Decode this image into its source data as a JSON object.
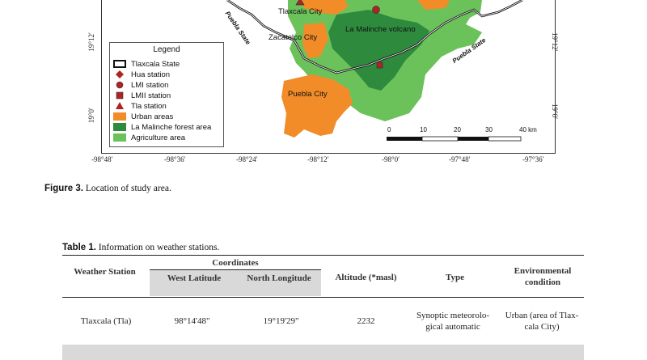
{
  "map": {
    "legend": {
      "title": "Legend",
      "items": [
        {
          "label": "Tlaxcala State",
          "symbol": "state-boundary-icon"
        },
        {
          "label": "Hua station",
          "symbol": "diamond-icon",
          "color": "#b22222"
        },
        {
          "label": "LMI station",
          "symbol": "circle-icon",
          "color": "#b22222"
        },
        {
          "label": "LMII station",
          "symbol": "square-icon",
          "color": "#b22222"
        },
        {
          "label": "Tla station",
          "symbol": "triangle-icon",
          "color": "#b22222"
        },
        {
          "label": "Urban areas",
          "symbol": "swatch-icon",
          "color": "#f28c28"
        },
        {
          "label": "La Malinche forest area",
          "symbol": "swatch-icon",
          "color": "#2e8b3e"
        },
        {
          "label": "Agriculture area",
          "symbol": "swatch-icon",
          "color": "#6cc25a"
        }
      ]
    },
    "labels": {
      "tlaxcala_city": "Tlaxcala City",
      "zacatelco_city": "Zacatelco City",
      "la_malinche": "La Malinche volcano",
      "puebla_city": "Puebla City",
      "puebla_state_left": "Puebla State",
      "puebla_state_right": "Puebla State"
    },
    "scale_bar": {
      "ticks": [
        "0",
        "10",
        "20",
        "30",
        "40 km"
      ]
    },
    "lon_ticks": [
      "-98°48′",
      "-98°36′",
      "-98°24′",
      "-98°12′",
      "-98°0′",
      "-97°48′",
      "-97°36′"
    ],
    "lat_ticks": [
      "19°12′",
      "19°0′"
    ],
    "colors": {
      "urban": "#f28c28",
      "forest": "#2e8b3e",
      "agriculture": "#6cc25a",
      "station": "#b22222"
    }
  },
  "figure_caption": {
    "label": "Figure 3.",
    "text": " Location of study area."
  },
  "table_caption": {
    "label": "Table 1.",
    "text": " Information on weather stations."
  },
  "table": {
    "headers": {
      "weather_station": "Weather Station",
      "coordinates": "Coordinates",
      "west_latitude": "West Latitude",
      "north_longitude": "North Longitude",
      "altitude": "Altitude (*masl)",
      "type": "Type",
      "environmental_condition": "Environmental condition"
    },
    "rows": [
      {
        "station": "Tlaxcala (Tla)",
        "west_latitude": "98°14'48\"",
        "north_longitude": "19°19'29\"",
        "altitude": "2232",
        "type": "Synoptic meteorolo-gical automatic",
        "environment": "Urban (area of Tlax-cala City)"
      }
    ]
  }
}
